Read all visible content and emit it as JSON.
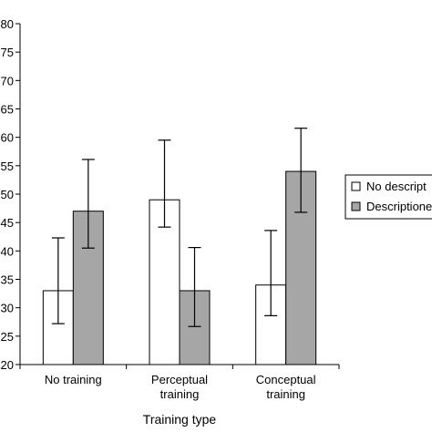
{
  "chart_data": {
    "type": "bar",
    "xlabel": "Training type",
    "ylabel": "",
    "ylim": [
      20,
      80
    ],
    "yticks": [
      20,
      25,
      30,
      35,
      40,
      45,
      50,
      55,
      60,
      65,
      70,
      75,
      80
    ],
    "ytick_labels": [
      "20",
      "25",
      "30",
      "35",
      "40",
      "45",
      "50",
      "55",
      "60",
      "65",
      "70",
      "75",
      "80"
    ],
    "categories": [
      [
        "No training"
      ],
      [
        "Perceptual",
        "training"
      ],
      [
        "Conceptual",
        "training"
      ]
    ],
    "series": [
      {
        "name": "No descript",
        "color": "#ffffff",
        "values": [
          33,
          49,
          34
        ],
        "err_low": [
          27.2,
          44.2,
          28.6
        ],
        "err_high": [
          42.3,
          59.5,
          43.6
        ]
      },
      {
        "name": "Descriptione",
        "color": "#a6a6a6",
        "values": [
          47,
          33,
          54
        ],
        "err_low": [
          40.5,
          26.7,
          46.8
        ],
        "err_high": [
          56.1,
          40.6,
          61.6
        ]
      }
    ],
    "grid": false,
    "legend_position": "right"
  }
}
